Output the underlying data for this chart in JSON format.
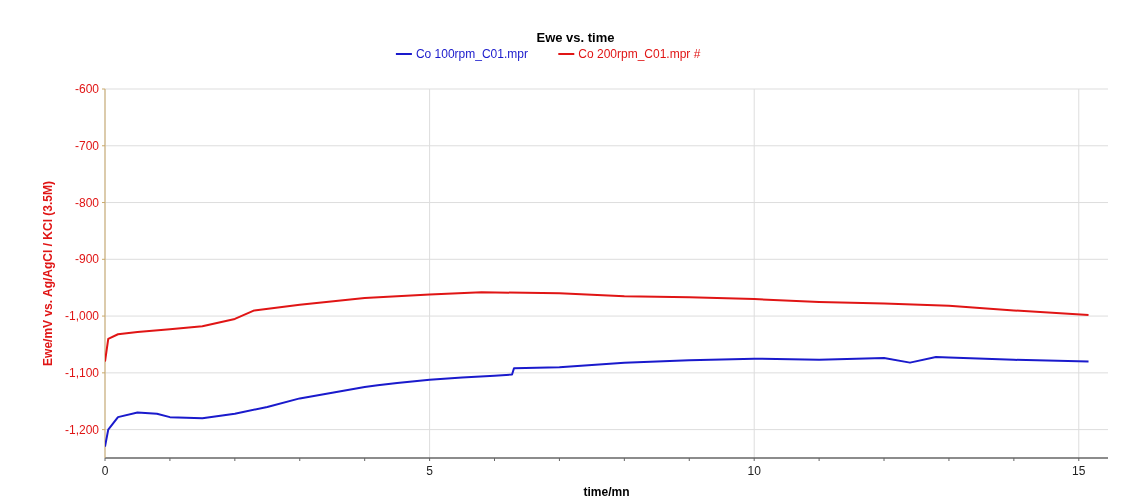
{
  "chart_data": {
    "type": "line",
    "title": "Ewe vs. time",
    "xlabel": "time/mn",
    "ylabel": "Ewe/mV vs. Ag/AgCl / KCl (3.5M)",
    "xlim": [
      0,
      15.45
    ],
    "ylim": [
      -1250,
      -600
    ],
    "xticks": [
      0,
      {
        "value": 1,
        "label": null
      },
      {
        "value": 2,
        "label": null
      },
      {
        "value": 3,
        "label": null
      },
      {
        "value": 4,
        "label": null
      },
      5,
      {
        "value": 6,
        "label": null
      },
      {
        "value": 7,
        "label": null
      },
      {
        "value": 8,
        "label": null
      },
      {
        "value": 9,
        "label": null
      },
      10,
      {
        "value": 11,
        "label": null
      },
      {
        "value": 12,
        "label": null
      },
      {
        "value": 13,
        "label": null
      },
      {
        "value": 14,
        "label": null
      },
      15
    ],
    "yticks": [
      {
        "value": -1200,
        "label": "-1,200"
      },
      {
        "value": -1100,
        "label": "-1,100"
      },
      {
        "value": -1000,
        "label": "-1,000"
      },
      -900,
      -800,
      -700,
      -600
    ],
    "grid": true,
    "legend": "top",
    "line_style": "solid",
    "marker": "none",
    "series": [
      {
        "name": "Co 100rpm_C01.mpr",
        "color": "#1a1acc",
        "x": [
          0,
          0.05,
          0.2,
          0.5,
          0.8,
          1,
          1.5,
          2,
          2.5,
          3,
          3.5,
          4,
          4.2,
          4.5,
          5,
          5.5,
          6,
          6.27,
          6.3,
          7,
          8,
          9,
          10,
          11,
          12,
          12.4,
          12.8,
          13,
          14,
          15.15
        ],
        "values": [
          -1230,
          -1200,
          -1178,
          -1170,
          -1172,
          -1178,
          -1180,
          -1172,
          -1160,
          -1145,
          -1135,
          -1125,
          -1122,
          -1118,
          -1112,
          -1108,
          -1105,
          -1103,
          -1092,
          -1090,
          -1082,
          -1078,
          -1075,
          -1077,
          -1074,
          -1082,
          -1072,
          -1073,
          -1077,
          -1080
        ]
      },
      {
        "name": "Co 200rpm_C01.mpr #",
        "color": "#e01515",
        "x": [
          0,
          0.05,
          0.2,
          0.5,
          1,
          1.5,
          2,
          2.3,
          3,
          4,
          5,
          5.8,
          7,
          8,
          9,
          10,
          11,
          12,
          13,
          14,
          15.15
        ],
        "values": [
          -1080,
          -1040,
          -1032,
          -1028,
          -1023,
          -1018,
          -1005,
          -990,
          -980,
          -968,
          -962,
          -958,
          -960,
          -965,
          -967,
          -970,
          -975,
          -978,
          -982,
          -990,
          -998
        ]
      }
    ]
  }
}
